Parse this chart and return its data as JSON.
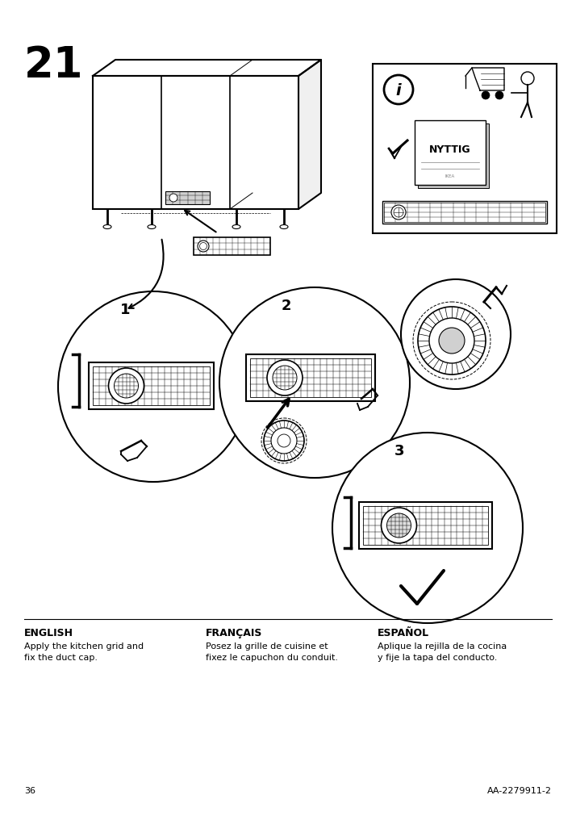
{
  "page_number": "36",
  "step_number": "21",
  "doc_ref": "AA-2279911-2",
  "bg_color": "#ffffff",
  "text_color": "#000000",
  "languages": [
    "ENGLISH",
    "FRANÇAIS",
    "ESPAÑOL"
  ],
  "descriptions": [
    "Apply the kitchen grid and\nfix the duct cap.",
    "Posez la grille de cuisine et\nfixez le capuchon du conduit.",
    "Aplique la rejilla de la cocina\ny fije la tapa del conducto."
  ],
  "step_label_fontsize": 38,
  "lang_header_fontsize": 9,
  "lang_body_fontsize": 8,
  "page_num_fontsize": 8,
  "doc_ref_fontsize": 8
}
